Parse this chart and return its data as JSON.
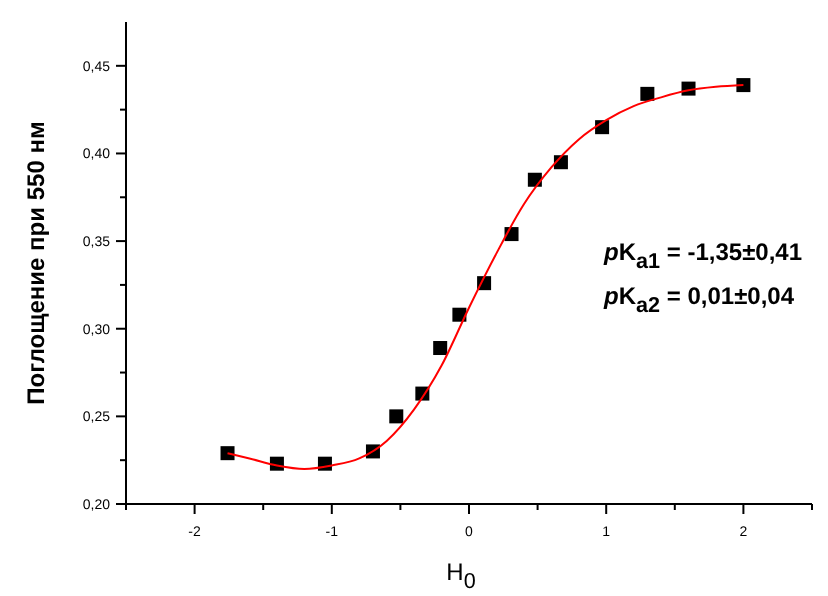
{
  "chart_data": {
    "type": "scatter",
    "xlabel": "H$_{0}$",
    "ylabel": "Поглощение при 550 нм",
    "xlim": [
      -2.5,
      2.5
    ],
    "ylim": [
      0.2,
      0.475
    ],
    "xticks": [
      {
        "value": -2.5,
        "label": null
      },
      -2,
      {
        "value": -1.5,
        "label": null
      },
      -1,
      {
        "value": -0.5,
        "label": null
      },
      0,
      {
        "value": 0.5,
        "label": null
      },
      1,
      {
        "value": 1.5,
        "label": null
      },
      2,
      {
        "value": 2.5,
        "label": null
      }
    ],
    "yticks": [
      {
        "value": 0.2,
        "label": "0,20"
      },
      {
        "value": 0.225,
        "label": null
      },
      {
        "value": 0.25,
        "label": "0,25"
      },
      {
        "value": 0.275,
        "label": null
      },
      {
        "value": 0.3,
        "label": "0,30"
      },
      {
        "value": 0.325,
        "label": null
      },
      {
        "value": 0.35,
        "label": "0,35"
      },
      {
        "value": 0.375,
        "label": null
      },
      {
        "value": 0.4,
        "label": "0,40"
      },
      {
        "value": 0.425,
        "label": null
      },
      {
        "value": 0.45,
        "label": "0,45"
      }
    ],
    "grid": false,
    "series": [
      {
        "marker": "square",
        "color": "#000000",
        "x": [
          -1.76,
          -1.4,
          -1.05,
          -0.7,
          -0.53,
          -0.34,
          -0.21,
          -0.07,
          0.11,
          0.31,
          0.48,
          0.67,
          0.97,
          1.3,
          1.6,
          2.0
        ],
        "values": [
          0.229,
          0.223,
          0.223,
          0.23,
          0.25,
          0.263,
          0.289,
          0.308,
          0.326,
          0.354,
          0.385,
          0.395,
          0.415,
          0.434,
          0.437,
          0.439
        ]
      },
      {
        "type": "line",
        "marker": "none",
        "line_style": "solid",
        "color": "#ff0000",
        "x": [
          -1.76,
          -1.6,
          -1.4,
          -1.2,
          -1.0,
          -0.8,
          -0.6,
          -0.4,
          -0.2,
          0,
          0.2,
          0.4,
          0.6,
          0.8,
          1.0,
          1.2,
          1.4,
          1.6,
          1.8,
          2.0
        ],
        "values": [
          0.229,
          0.226,
          0.222,
          0.22,
          0.222,
          0.226,
          0.236,
          0.254,
          0.279,
          0.312,
          0.343,
          0.371,
          0.392,
          0.408,
          0.419,
          0.427,
          0.432,
          0.436,
          0.438,
          0.439
        ]
      }
    ],
    "annotations": [
      "pK$_{a1}$= -1,35±0,41",
      "pK$_{a2}$= 0,01±0,04"
    ]
  }
}
